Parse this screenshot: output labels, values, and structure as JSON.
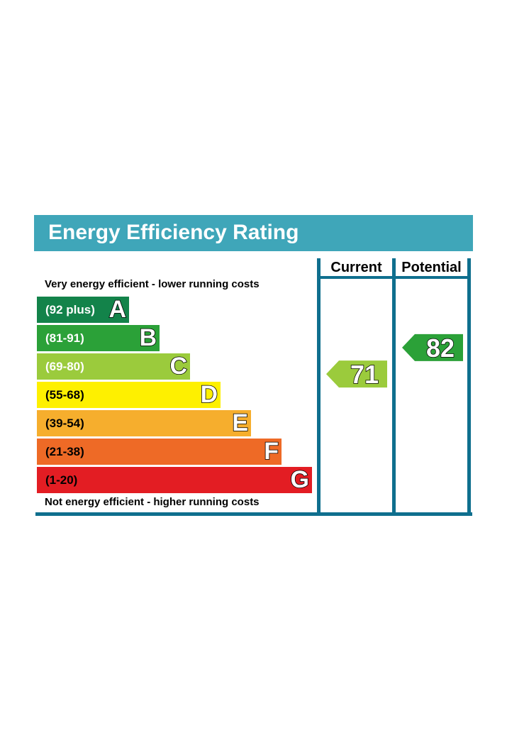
{
  "chart_data": {
    "type": "bar",
    "title": "Energy Efficiency Rating",
    "top_caption": "Very energy efficient - lower running costs",
    "bottom_caption": "Not energy efficient - higher running costs",
    "columns": [
      "Current",
      "Potential"
    ],
    "bands": [
      {
        "letter": "A",
        "range": "(92 plus)",
        "min": 92,
        "max": 100,
        "color": "#13834a",
        "text": "light"
      },
      {
        "letter": "B",
        "range": "(81-91)",
        "min": 81,
        "max": 91,
        "color": "#2ba138",
        "text": "light"
      },
      {
        "letter": "C",
        "range": "(69-80)",
        "min": 69,
        "max": 80,
        "color": "#9bcb3c",
        "text": "light"
      },
      {
        "letter": "D",
        "range": "(55-68)",
        "min": 55,
        "max": 68,
        "color": "#fef000",
        "text": "dark"
      },
      {
        "letter": "E",
        "range": "(39-54)",
        "min": 39,
        "max": 54,
        "color": "#f6ae2d",
        "text": "dark"
      },
      {
        "letter": "F",
        "range": "(21-38)",
        "min": 21,
        "max": 38,
        "color": "#ee6a26",
        "text": "dark"
      },
      {
        "letter": "G",
        "range": "(1-20)",
        "min": 1,
        "max": 20,
        "color": "#e31d23",
        "text": "dark"
      }
    ],
    "ratings": {
      "current": {
        "value": 71,
        "band": "C",
        "color": "#9bcb3c"
      },
      "potential": {
        "value": 82,
        "band": "B",
        "color": "#2ba138"
      }
    }
  },
  "colors": {
    "header": "#3fa6b9",
    "frame": "#0f6f8e"
  }
}
